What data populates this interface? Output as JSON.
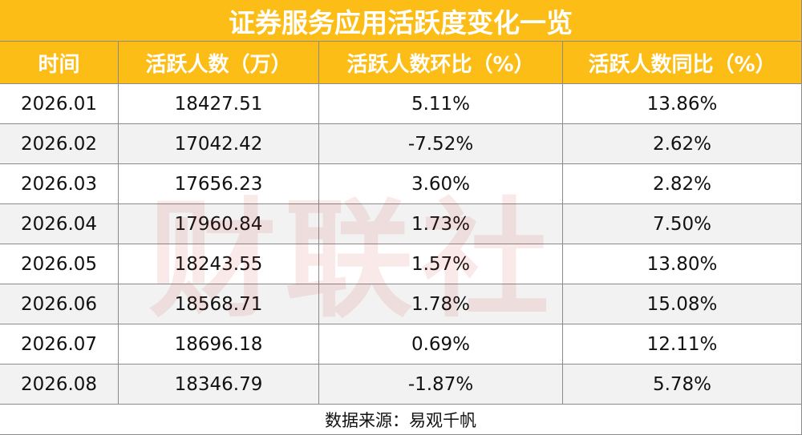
{
  "header": {
    "title": "证券服务应用活跃度变化一览"
  },
  "table": {
    "columns": [
      "时间",
      "活跃人数（万）",
      "活跃人数环比（%）",
      "活跃人数同比（%）"
    ],
    "rows": [
      [
        "2026.01",
        "18427.51",
        "5.11%",
        "13.86%"
      ],
      [
        "2026.02",
        "17042.42",
        "-7.52%",
        "2.62%"
      ],
      [
        "2026.03",
        "17656.23",
        "3.60%",
        "2.82%"
      ],
      [
        "2026.04",
        "17960.84",
        "1.73%",
        "7.50%"
      ],
      [
        "2026.05",
        "18243.55",
        "1.57%",
        "13.80%"
      ],
      [
        "2026.06",
        "18568.71",
        "1.78%",
        "15.08%"
      ],
      [
        "2026.07",
        "18696.18",
        "0.69%",
        "12.11%"
      ],
      [
        "2026.08",
        "18346.79",
        "-1.87%",
        "5.78%"
      ]
    ]
  },
  "footer": {
    "source": "数据来源：易观千帆"
  },
  "watermark": "财联社"
}
